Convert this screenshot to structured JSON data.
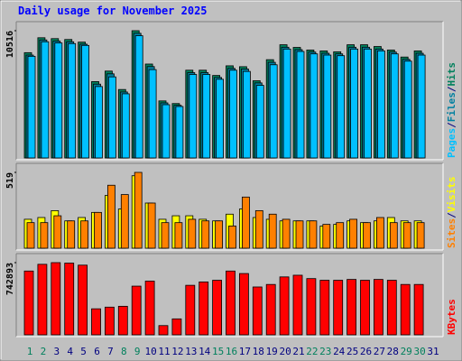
{
  "chart_data": [
    {
      "type": "bar",
      "title": "Daily usage for November 2025",
      "categories": [
        "1",
        "2",
        "3",
        "4",
        "5",
        "6",
        "7",
        "8",
        "9",
        "10",
        "11",
        "12",
        "13",
        "14",
        "15",
        "16",
        "17",
        "18",
        "19",
        "20",
        "21",
        "22",
        "23",
        "24",
        "25",
        "26",
        "27",
        "28",
        "29",
        "30",
        "31"
      ],
      "legend_separator": "/",
      "series": [
        {
          "name": "Hits",
          "color": "#00805c",
          "values": [
            8700,
            9933,
            9860,
            9788,
            9570,
            6308,
            7178,
            5655,
            10516,
            7758,
            4713,
            4495,
            7250,
            7250,
            6815,
            7613,
            7540,
            6380,
            8120,
            9353,
            9135,
            8918,
            8845,
            8773,
            9353,
            9353,
            9208,
            8918,
            8338,
            8845,
            null
          ]
        },
        {
          "name": "Files",
          "color": "#0080a0",
          "values": [
            8500,
            9750,
            9650,
            9600,
            9400,
            6100,
            6950,
            5450,
            10300,
            7550,
            4550,
            4350,
            7050,
            7050,
            6650,
            7400,
            7350,
            6200,
            7900,
            9150,
            8950,
            8750,
            8650,
            8600,
            9150,
            9150,
            9000,
            8750,
            8150,
            8650,
            null
          ]
        },
        {
          "name": "Pages",
          "color": "#00c0ff",
          "values": [
            8400,
            9600,
            9500,
            9450,
            9300,
            5900,
            6700,
            5300,
            10100,
            7300,
            4400,
            4250,
            6900,
            6900,
            6500,
            7250,
            7150,
            6000,
            7700,
            9000,
            8800,
            8600,
            8500,
            8450,
            9000,
            9000,
            8850,
            8600,
            8000,
            8500,
            null
          ]
        }
      ],
      "ylim": [
        0,
        10516
      ],
      "yticks": [
        10516
      ]
    },
    {
      "type": "bar",
      "categories": [
        "1",
        "2",
        "3",
        "4",
        "5",
        "6",
        "7",
        "8",
        "9",
        "10",
        "11",
        "12",
        "13",
        "14",
        "15",
        "16",
        "17",
        "18",
        "19",
        "20",
        "21",
        "22",
        "23",
        "24",
        "25",
        "26",
        "27",
        "28",
        "29",
        "30",
        "31"
      ],
      "legend_separator": "/",
      "series": [
        {
          "name": "Visits",
          "color": "#ffff00",
          "values": [
            198,
            210,
            257,
            187,
            210,
            245,
            361,
            268,
            496,
            309,
            198,
            222,
            222,
            198,
            187,
            233,
            268,
            210,
            198,
            187,
            187,
            187,
            152,
            163,
            187,
            175,
            187,
            210,
            187,
            187,
            null
          ]
        },
        {
          "name": "Sites",
          "color": "#ff8000",
          "values": [
            175,
            175,
            222,
            187,
            187,
            245,
            431,
            367,
            519,
            309,
            175,
            175,
            198,
            187,
            187,
            152,
            350,
            257,
            233,
            198,
            187,
            187,
            163,
            175,
            198,
            175,
            210,
            175,
            175,
            175,
            null
          ]
        }
      ],
      "ylim": [
        0,
        519
      ],
      "yticks": [
        519
      ]
    },
    {
      "type": "bar",
      "categories": [
        "1",
        "2",
        "3",
        "4",
        "5",
        "6",
        "7",
        "8",
        "9",
        "10",
        "11",
        "12",
        "13",
        "14",
        "15",
        "16",
        "17",
        "18",
        "19",
        "20",
        "21",
        "22",
        "23",
        "24",
        "25",
        "26",
        "27",
        "28",
        "29",
        "30",
        "31"
      ],
      "category_colors": [
        "#00805c",
        "#00805c",
        "#000080",
        "#000080",
        "#000080",
        "#000080",
        "#000080",
        "#00805c",
        "#00805c",
        "#000080",
        "#000080",
        "#000080",
        "#000080",
        "#000080",
        "#00805c",
        "#00805c",
        "#000080",
        "#000080",
        "#000080",
        "#000080",
        "#000080",
        "#00805c",
        "#00805c",
        "#000080",
        "#000080",
        "#000080",
        "#000080",
        "#000080",
        "#00805c",
        "#00805c",
        "#000080"
      ],
      "series": [
        {
          "name": "KBytes",
          "color": "#ff0000",
          "values": [
            656500,
            725600,
            742893,
            738000,
            717000,
            267800,
            285000,
            293700,
            501000,
            552800,
            95000,
            164100,
            509600,
            544200,
            561500,
            656500,
            630600,
            492400,
            518300,
            596000,
            613300,
            578700,
            561500,
            561500,
            570100,
            561500,
            570100,
            561500,
            518300,
            518300,
            null
          ]
        }
      ],
      "ylim": [
        0,
        742893
      ],
      "yticks": [
        742893
      ]
    }
  ]
}
